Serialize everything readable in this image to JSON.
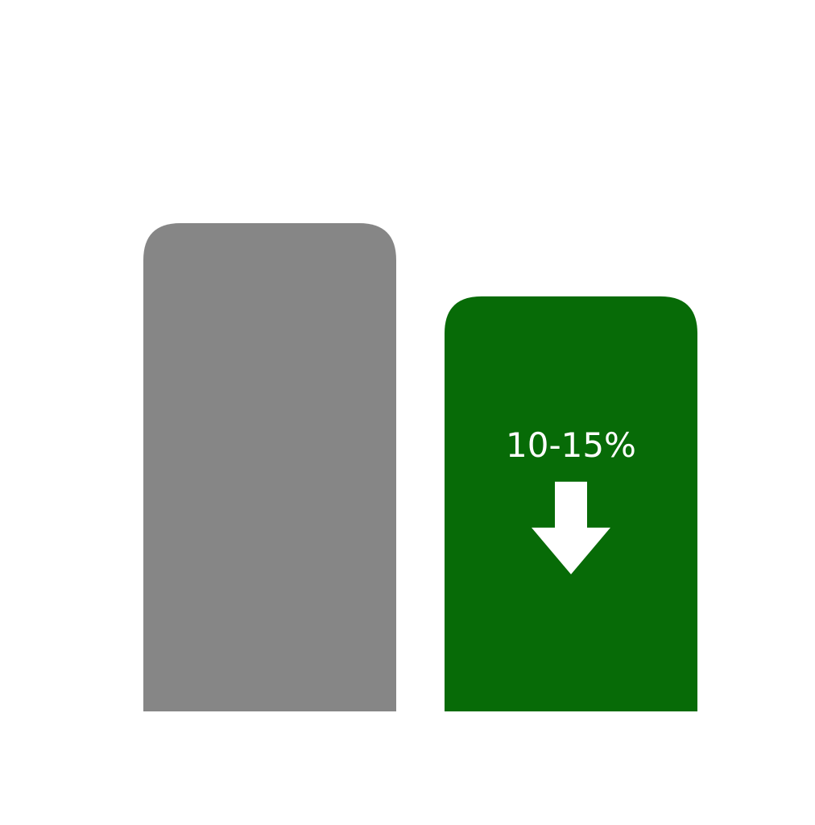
{
  "chart_data": {
    "type": "bar",
    "categories": [
      "",
      ""
    ],
    "values": [
      100,
      85
    ],
    "colors": [
      "#868686",
      "#076b07"
    ],
    "title": "",
    "xlabel": "",
    "ylabel": "",
    "axes_visible": false,
    "grid": false,
    "ylim": [
      0,
      100
    ],
    "annotation": {
      "bar_index": 1,
      "text": "10-15%",
      "icon": "arrow-down-icon",
      "color": "#ffffff"
    }
  }
}
